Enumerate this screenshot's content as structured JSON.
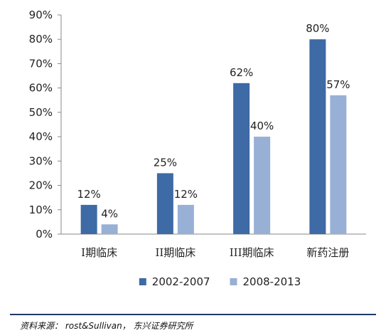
{
  "chart_data": {
    "type": "bar",
    "categories": [
      "I期临床",
      "II期临床",
      "III期临床",
      "新药注册"
    ],
    "series": [
      {
        "name": "2002-2007",
        "values": [
          12,
          25,
          62,
          80
        ],
        "labels": [
          "12%",
          "25%",
          "62%",
          "80%"
        ],
        "color": "#3e6aa5"
      },
      {
        "name": "2008-2013",
        "values": [
          4,
          12,
          40,
          57
        ],
        "labels": [
          "4%",
          "12%",
          "40%",
          "57%"
        ],
        "color": "#98b0d6"
      }
    ],
    "ylim": [
      0,
      90
    ],
    "yticks": [
      0,
      10,
      20,
      30,
      40,
      50,
      60,
      70,
      80,
      90
    ],
    "ytick_labels": [
      "0%",
      "10%",
      "20%",
      "30%",
      "40%",
      "50%",
      "60%",
      "70%",
      "80%",
      "90%"
    ],
    "grid": false,
    "legend_position": "bottom"
  },
  "source": {
    "text": "资料来源： rost&Sullivan， 东兴证券研究所"
  }
}
